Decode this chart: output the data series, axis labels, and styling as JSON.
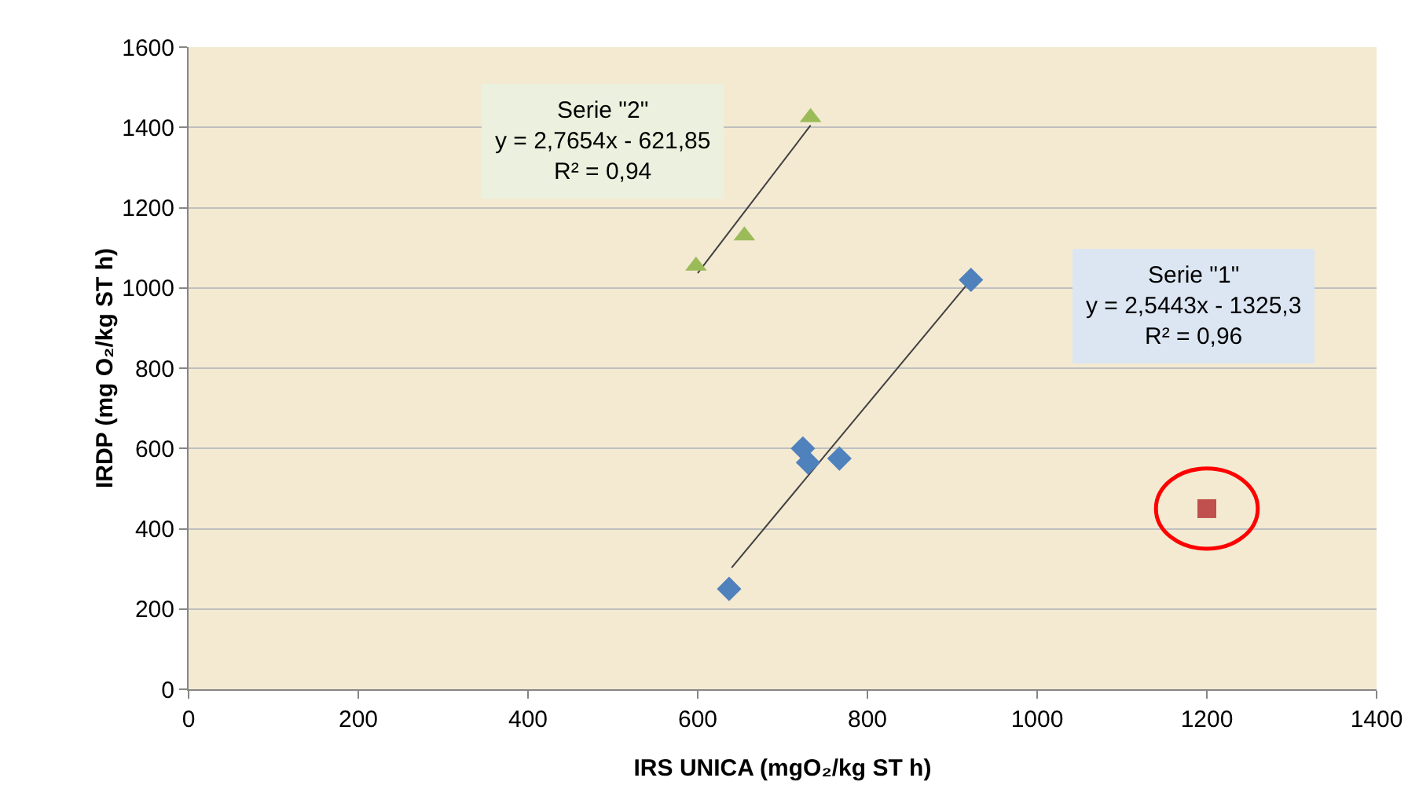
{
  "chart_data": {
    "type": "scatter",
    "xlabel": "IRS UNICA (mgO₂/kg ST h)",
    "ylabel": "IRDP (mg O₂/kg ST h)",
    "xlim": [
      0,
      1400
    ],
    "xticks": [
      0,
      200,
      400,
      600,
      800,
      1000,
      1200,
      1400
    ],
    "ylim": [
      0,
      1600
    ],
    "yticks": [
      0,
      200,
      400,
      600,
      800,
      1000,
      1200,
      1400,
      1600
    ],
    "grid": "y",
    "legend": false,
    "series": [
      {
        "marker": "diamond",
        "color": "#4f81bd",
        "x": [
          637,
          724,
          730,
          767,
          922
        ],
        "values": [
          250,
          600,
          565,
          575,
          1020
        ]
      },
      {
        "marker": "triangle",
        "color": "#9bbb59",
        "x": [
          598,
          655,
          733
        ],
        "values": [
          1055,
          1130,
          1425
        ]
      },
      {
        "marker": "square",
        "color": "#c0504d",
        "x": [
          1200
        ],
        "values": [
          450
        ]
      },
      {
        "type": "line",
        "marker": "none",
        "color": "#404040",
        "x": [
          640,
          927
        ],
        "values": [
          303,
          1033
        ]
      },
      {
        "type": "line",
        "marker": "none",
        "color": "#404040",
        "x": [
          600,
          733
        ],
        "values": [
          1037,
          1405
        ]
      }
    ],
    "annotations": [
      "Serie \"1\"\ny = 2,5443x - 1325,3\nR² = 0,96",
      "Serie \"2\"\ny = 2,7654x - 621,85\nR² = 0,94"
    ]
  }
}
